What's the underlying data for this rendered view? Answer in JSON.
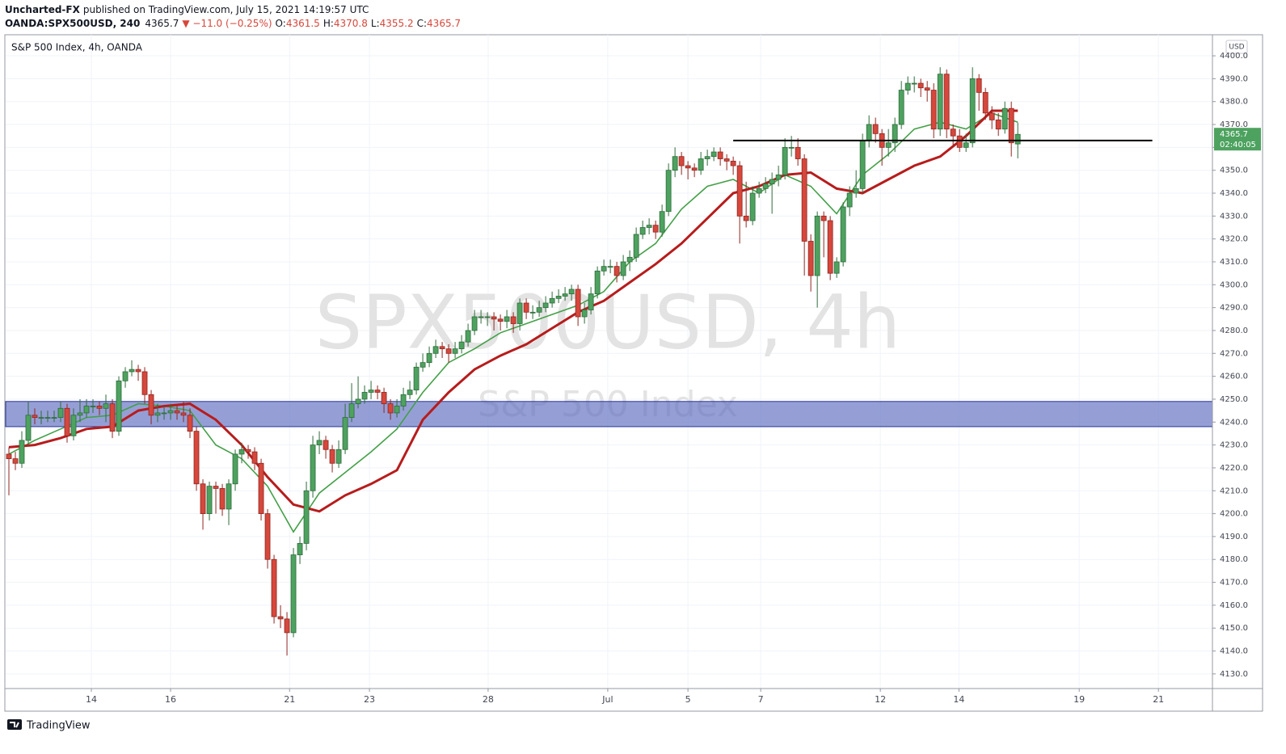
{
  "header": {
    "author": "Uncharted-FX",
    "published": "published on TradingView.com, July 15, 2021 14:19:57 UTC",
    "symbol": "OANDA:SPX500USD, 240",
    "change": "▼ −11.0 (−0.25%)",
    "o": "O:",
    "h": "H:",
    "l": "L:",
    "c": "C:"
  },
  "chart_data": {
    "type": "candlestick",
    "legend_text": "S&P 500 Index, 4h, OANDA",
    "watermark": "SPX500USD, 4h",
    "watermark_sub": "S&P 500 Index",
    "currency": "USD",
    "countdown": "02:40:05",
    "brand": "TradingView",
    "up_color": "#4da25f",
    "down_color": "#d6473c",
    "up_border": "#2e6b3a",
    "down_border": "#8f2620",
    "grid": true,
    "open": [
      4226,
      4224,
      4222,
      4232,
      4243,
      4242,
      4242,
      4242,
      4242,
      4246,
      4234,
      4243,
      4244,
      4247,
      4247,
      4246,
      4248,
      4236,
      4258,
      4262,
      4263,
      4262,
      4252,
      4243,
      4244,
      4244,
      4245,
      4244,
      4243,
      4236,
      4213,
      4200,
      4212,
      4211,
      4202,
      4213,
      4226,
      4228,
      4227,
      4222,
      4200,
      4180,
      4155,
      4154,
      4148,
      4182,
      4187,
      4210,
      4230,
      4232,
      4228,
      4222,
      4228,
      4242,
      4248,
      4250,
      4253,
      4254,
      4253,
      4248,
      4244,
      4247,
      4252,
      4254,
      4264,
      4266,
      4270,
      4273,
      4272,
      4270,
      4272,
      4275,
      4280,
      4286,
      4286,
      4286,
      4285,
      4284,
      4286,
      4283,
      4292,
      4288,
      4288,
      4290,
      4292,
      4294,
      4295,
      4296,
      4298,
      4286,
      4289,
      4296,
      4306,
      4308,
      4308,
      4304,
      4310,
      4312,
      4322,
      4325,
      4326,
      4323,
      4332,
      4350,
      4356,
      4352,
      4351,
      4350,
      4355,
      4356,
      4358,
      4355,
      4354,
      4352,
      4330,
      4328,
      4340,
      4342,
      4344,
      4346,
      4348,
      4360,
      4360,
      4355,
      4319,
      4304,
      4330,
      4328,
      4305,
      4310,
      4334,
      4340,
      4342,
      4363,
      4370,
      4366,
      4360,
      4362,
      4370,
      4385,
      4388,
      4388,
      4386,
      4385,
      4368,
      4392,
      4368,
      4365,
      4360,
      4362,
      4390,
      4384,
      4375,
      4372,
      4368,
      4377,
      4361.5
    ],
    "high": [
      4229,
      4227,
      4236,
      4249,
      4246,
      4245,
      4245,
      4245,
      4249,
      4248,
      4246,
      4250,
      4250,
      4250,
      4249,
      4252,
      4250,
      4260,
      4264,
      4267,
      4265,
      4264,
      4254,
      4248,
      4247,
      4248,
      4247,
      4249,
      4246,
      4238,
      4215,
      4214,
      4214,
      4213,
      4215,
      4228,
      4231,
      4230,
      4229,
      4224,
      4202,
      4182,
      4160,
      4157,
      4185,
      4190,
      4214,
      4234,
      4236,
      4234,
      4230,
      4232,
      4248,
      4257,
      4260,
      4256,
      4258,
      4256,
      4255,
      4250,
      4250,
      4255,
      4258,
      4266,
      4270,
      4273,
      4276,
      4275,
      4274,
      4275,
      4278,
      4283,
      4289,
      4289,
      4288,
      4288,
      4287,
      4289,
      4288,
      4294,
      4294,
      4291,
      4293,
      4295,
      4297,
      4298,
      4299,
      4300,
      4300,
      4292,
      4299,
      4308,
      4311,
      4311,
      4310,
      4313,
      4315,
      4325,
      4328,
      4329,
      4328,
      4335,
      4353,
      4360,
      4358,
      4354,
      4353,
      4358,
      4359,
      4360,
      4360,
      4357,
      4356,
      4354,
      4345,
      4343,
      4345,
      4347,
      4349,
      4352,
      4364,
      4365,
      4364,
      4357,
      4322,
      4332,
      4332,
      4330,
      4312,
      4336,
      4343,
      4350,
      4366,
      4374,
      4373,
      4368,
      4368,
      4373,
      4389,
      4391,
      4391,
      4390,
      4389,
      4388,
      4395,
      4394,
      4370,
      4368,
      4366,
      4395,
      4392,
      4386,
      4378,
      4375,
      4380,
      4380,
      4370.8
    ],
    "low": [
      4208,
      4219,
      4220,
      4230,
      4239,
      4239,
      4240,
      4240,
      4240,
      4231,
      4232,
      4240,
      4242,
      4244,
      4243,
      4240,
      4233,
      4234,
      4255,
      4260,
      4258,
      4248,
      4239,
      4240,
      4241,
      4241,
      4241,
      4240,
      4233,
      4210,
      4193,
      4197,
      4200,
      4199,
      4195,
      4210,
      4222,
      4224,
      4219,
      4197,
      4176,
      4152,
      4150,
      4138,
      4146,
      4178,
      4184,
      4207,
      4226,
      4224,
      4218,
      4220,
      4226,
      4240,
      4246,
      4248,
      4250,
      4250,
      4244,
      4241,
      4242,
      4245,
      4250,
      4252,
      4262,
      4264,
      4268,
      4268,
      4266,
      4268,
      4270,
      4273,
      4278,
      4283,
      4282,
      4280,
      4280,
      4281,
      4279,
      4280,
      4285,
      4285,
      4286,
      4288,
      4290,
      4292,
      4293,
      4293,
      4282,
      4283,
      4287,
      4294,
      4304,
      4305,
      4301,
      4302,
      4306,
      4310,
      4320,
      4322,
      4320,
      4321,
      4330,
      4347,
      4348,
      4346,
      4347,
      4348,
      4352,
      4354,
      4352,
      4350,
      4348,
      4318,
      4325,
      4326,
      4338,
      4340,
      4331,
      4343,
      4346,
      4356,
      4352,
      4304,
      4297,
      4290,
      4312,
      4302,
      4303,
      4308,
      4330,
      4338,
      4340,
      4360,
      4362,
      4352,
      4356,
      4358,
      4368,
      4383,
      4384,
      4382,
      4380,
      4364,
      4365,
      4364,
      4360,
      4358,
      4358,
      4360,
      4376,
      4372,
      4368,
      4365,
      4366,
      4356,
      4355.2
    ],
    "close": [
      4224,
      4222,
      4232,
      4243,
      4242,
      4242,
      4242,
      4242,
      4246,
      4234,
      4243,
      4244,
      4247,
      4247,
      4246,
      4248,
      4236,
      4258,
      4262,
      4263,
      4262,
      4252,
      4243,
      4244,
      4244,
      4245,
      4244,
      4243,
      4236,
      4213,
      4200,
      4212,
      4211,
      4202,
      4213,
      4226,
      4228,
      4227,
      4222,
      4200,
      4180,
      4155,
      4154,
      4148,
      4182,
      4187,
      4210,
      4230,
      4232,
      4228,
      4222,
      4228,
      4242,
      4248,
      4250,
      4253,
      4254,
      4253,
      4248,
      4244,
      4247,
      4252,
      4254,
      4264,
      4266,
      4270,
      4273,
      4272,
      4270,
      4272,
      4275,
      4280,
      4286,
      4286,
      4286,
      4285,
      4284,
      4286,
      4283,
      4292,
      4288,
      4288,
      4290,
      4292,
      4294,
      4295,
      4296,
      4298,
      4286,
      4289,
      4296,
      4306,
      4308,
      4308,
      4304,
      4310,
      4312,
      4322,
      4325,
      4326,
      4323,
      4332,
      4350,
      4356,
      4352,
      4351,
      4350,
      4355,
      4356,
      4358,
      4355,
      4354,
      4352,
      4330,
      4328,
      4340,
      4342,
      4344,
      4346,
      4348,
      4360,
      4360,
      4355,
      4319,
      4304,
      4330,
      4328,
      4305,
      4310,
      4334,
      4340,
      4342,
      4363,
      4370,
      4366,
      4360,
      4362,
      4370,
      4385,
      4388,
      4388,
      4386,
      4385,
      4368,
      4392,
      4368,
      4365,
      4360,
      4362,
      4390,
      4384,
      4375,
      4372,
      4368,
      4377,
      4362,
      4365.7
    ],
    "ma": [
      {
        "color": "#43a047",
        "x": [
          0,
          4,
          8,
          12,
          16,
          20,
          24,
          28,
          32,
          36,
          40,
          44,
          48,
          52,
          56,
          60,
          64,
          68,
          72,
          76,
          80,
          84,
          88,
          92,
          96,
          100,
          104,
          108,
          112,
          116,
          120,
          124,
          128,
          132,
          136,
          140,
          144,
          148,
          152,
          156
        ],
        "values": [
          4226,
          4232,
          4237,
          4242,
          4243,
          4248,
          4247,
          4245,
          4230,
          4224,
          4212,
          4192,
          4209,
          4218,
          4227,
          4237,
          4253,
          4266,
          4272,
          4279,
          4283,
          4287,
          4291,
          4297,
          4310,
          4318,
          4333,
          4343,
          4346,
          4340,
          4348,
          4343,
          4331,
          4348,
          4357,
          4368,
          4371,
          4368,
          4375,
          4371
        ]
      },
      {
        "color": "#b71c1c",
        "x": [
          0,
          4,
          8,
          12,
          16,
          20,
          24,
          28,
          32,
          36,
          40,
          44,
          48,
          52,
          56,
          60,
          64,
          68,
          72,
          76,
          80,
          84,
          88,
          92,
          96,
          100,
          104,
          108,
          112,
          116,
          120,
          124,
          128,
          132,
          136,
          140,
          144,
          148,
          152,
          156
        ],
        "values": [
          4229,
          4230,
          4233,
          4237,
          4238,
          4245,
          4247,
          4248,
          4241,
          4230,
          4216,
          4204,
          4201,
          4208,
          4213,
          4219,
          4241,
          4253,
          4263,
          4269,
          4274,
          4281,
          4288,
          4293,
          4301,
          4309,
          4318,
          4329,
          4340,
          4343,
          4348,
          4349,
          4342,
          4340,
          4346,
          4352,
          4356,
          4365,
          4376,
          4376
        ]
      }
    ],
    "zones": [
      {
        "y": [
          4238,
          4249
        ],
        "color": "#5c6bc0"
      }
    ],
    "hlines": [
      {
        "value": 4363,
        "x": [
          112,
          176.8
        ],
        "color": "#000000"
      }
    ],
    "xlim": [
      -0.5,
      186.1
    ],
    "xticks": [
      {
        "value": 12.75,
        "label": "14"
      },
      {
        "value": 25,
        "label": "16"
      },
      {
        "value": 43.4,
        "label": "21"
      },
      {
        "value": 55.75,
        "label": "23"
      },
      {
        "value": 74.1,
        "label": "28"
      },
      {
        "value": 92.6,
        "label": "Jul"
      },
      {
        "value": 105,
        "label": "5"
      },
      {
        "value": 116.25,
        "label": "7"
      },
      {
        "value": 134.75,
        "label": "12"
      },
      {
        "value": 146.9,
        "label": "14"
      },
      {
        "value": 165.5,
        "label": "19"
      },
      {
        "value": 177.75,
        "label": "21"
      }
    ],
    "ylim": [
      4123.6,
      4409.2
    ],
    "yticks": [
      {
        "value": 4130,
        "label": "4130.0"
      },
      {
        "value": 4140,
        "label": "4140.0"
      },
      {
        "value": 4150,
        "label": "4150.0"
      },
      {
        "value": 4160,
        "label": "4160.0"
      },
      {
        "value": 4170,
        "label": "4170.0"
      },
      {
        "value": 4180,
        "label": "4180.0"
      },
      {
        "value": 4190,
        "label": "4190.0"
      },
      {
        "value": 4200,
        "label": "4200.0"
      },
      {
        "value": 4210,
        "label": "4210.0"
      },
      {
        "value": 4220,
        "label": "4220.0"
      },
      {
        "value": 4230,
        "label": "4230.0"
      },
      {
        "value": 4240,
        "label": "4240.0"
      },
      {
        "value": 4250,
        "label": "4250.0"
      },
      {
        "value": 4260,
        "label": "4260.0"
      },
      {
        "value": 4270,
        "label": "4270.0"
      },
      {
        "value": 4280,
        "label": "4280.0"
      },
      {
        "value": 4290,
        "label": "4290.0"
      },
      {
        "value": 4300,
        "label": "4300.0"
      },
      {
        "value": 4310,
        "label": "4310.0"
      },
      {
        "value": 4320,
        "label": "4320.0"
      },
      {
        "value": 4330,
        "label": "4330.0"
      },
      {
        "value": 4340,
        "label": "4340.0"
      },
      {
        "value": 4350,
        "label": "4350.0"
      },
      {
        "value": 4360,
        "label": "4360.0"
      },
      {
        "value": 4370,
        "label": "4370.0"
      },
      {
        "value": 4380,
        "label": "4380.0"
      },
      {
        "value": 4390,
        "label": "4390.0"
      },
      {
        "value": 4400,
        "label": "4400.0"
      }
    ]
  }
}
